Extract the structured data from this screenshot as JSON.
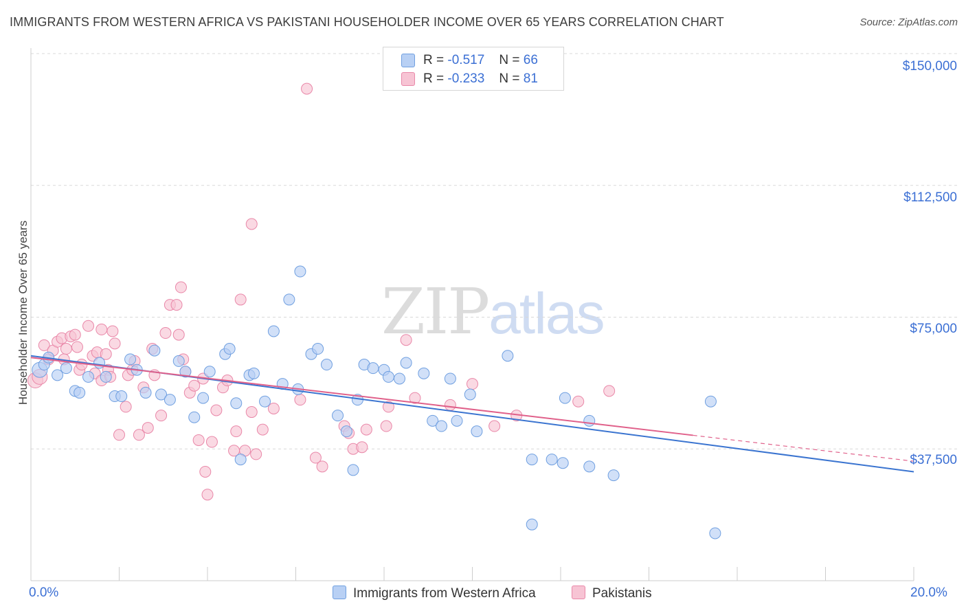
{
  "title": "IMMIGRANTS FROM WESTERN AFRICA VS PAKISTANI HOUSEHOLDER INCOME OVER 65 YEARS CORRELATION CHART",
  "source": "Source: ZipAtlas.com",
  "watermark": {
    "zip": "ZIP",
    "atlas": "atlas"
  },
  "legend": {
    "r_label": "R =",
    "n_label": "N =",
    "rows": [
      {
        "r": "-0.517",
        "n": "66"
      },
      {
        "r": "-0.233",
        "n": "81"
      }
    ]
  },
  "bottom_legend": [
    "Immigrants from Western Africa",
    "Pakistanis"
  ],
  "colors": {
    "blue_fill": "#b8d0f4",
    "blue_stroke": "#6f9fe0",
    "blue_line": "#3a74d0",
    "pink_fill": "#f7c4d4",
    "pink_stroke": "#e987a8",
    "pink_line": "#e0608a",
    "grid": "#d8d8d8",
    "axis_text": "#3b6fd4"
  },
  "chart_data": {
    "type": "scatter",
    "title": "IMMIGRANTS FROM WESTERN AFRICA VS PAKISTANI HOUSEHOLDER INCOME OVER 65 YEARS CORRELATION CHART",
    "xlabel": "",
    "ylabel": "Householder Income Over 65 years",
    "xlim": [
      0,
      20
    ],
    "ylim": [
      0,
      155000
    ],
    "x_tick_labels": [
      "0.0%",
      "20.0%"
    ],
    "y_ticks": [
      37500,
      75000,
      112500,
      150000
    ],
    "y_tick_labels": [
      "$37,500",
      "$75,000",
      "$112,500",
      "$150,000"
    ],
    "grid": "horizontal dashed",
    "legend_position": "top-center",
    "series": [
      {
        "name": "Immigrants from Western Africa",
        "r": -0.517,
        "n": 66,
        "trend": {
          "x": [
            0,
            20
          ],
          "y": [
            64000,
            31000
          ],
          "dashed_from": null
        },
        "points": [
          [
            0.2,
            60000
          ],
          [
            0.3,
            61500
          ],
          [
            0.4,
            63500
          ],
          [
            0.6,
            58500
          ],
          [
            0.8,
            60500
          ],
          [
            1.0,
            54000
          ],
          [
            1.1,
            53500
          ],
          [
            1.3,
            58000
          ],
          [
            1.55,
            62000
          ],
          [
            1.7,
            58000
          ],
          [
            1.9,
            52500
          ],
          [
            2.05,
            52500
          ],
          [
            2.25,
            63000
          ],
          [
            2.4,
            60000
          ],
          [
            2.6,
            53500
          ],
          [
            2.8,
            65500
          ],
          [
            2.95,
            53000
          ],
          [
            3.15,
            51500
          ],
          [
            3.35,
            62500
          ],
          [
            3.5,
            59500
          ],
          [
            3.7,
            46500
          ],
          [
            3.9,
            52000
          ],
          [
            4.05,
            59500
          ],
          [
            4.4,
            64500
          ],
          [
            4.5,
            66000
          ],
          [
            4.65,
            50500
          ],
          [
            4.75,
            34500
          ],
          [
            4.95,
            58500
          ],
          [
            5.05,
            59000
          ],
          [
            5.3,
            51000
          ],
          [
            5.5,
            71000
          ],
          [
            5.7,
            56000
          ],
          [
            5.85,
            80000
          ],
          [
            6.05,
            54500
          ],
          [
            6.1,
            88000
          ],
          [
            6.35,
            64500
          ],
          [
            6.5,
            66000
          ],
          [
            6.7,
            61500
          ],
          [
            6.95,
            47000
          ],
          [
            7.15,
            42500
          ],
          [
            7.3,
            31500
          ],
          [
            7.4,
            51500
          ],
          [
            7.55,
            61500
          ],
          [
            7.75,
            60500
          ],
          [
            8.0,
            60000
          ],
          [
            8.1,
            58000
          ],
          [
            8.35,
            57500
          ],
          [
            8.5,
            62000
          ],
          [
            8.9,
            59000
          ],
          [
            9.1,
            45500
          ],
          [
            9.3,
            44000
          ],
          [
            9.5,
            57500
          ],
          [
            9.65,
            45500
          ],
          [
            9.95,
            53000
          ],
          [
            10.1,
            42500
          ],
          [
            10.8,
            64000
          ],
          [
            11.35,
            34500
          ],
          [
            11.35,
            16000
          ],
          [
            11.8,
            34500
          ],
          [
            12.05,
            33500
          ],
          [
            12.1,
            52000
          ],
          [
            12.65,
            45500
          ],
          [
            12.65,
            32500
          ],
          [
            13.2,
            30000
          ],
          [
            15.4,
            51000
          ],
          [
            15.5,
            13500
          ]
        ]
      },
      {
        "name": "Pakistanis",
        "r": -0.233,
        "n": 81,
        "trend": {
          "x": [
            0,
            20
          ],
          "y": [
            63500,
            34000
          ],
          "dashed_from": 15
        },
        "points": [
          [
            0.1,
            57000
          ],
          [
            0.2,
            58000
          ],
          [
            0.3,
            67000
          ],
          [
            0.4,
            63000
          ],
          [
            0.5,
            65500
          ],
          [
            0.6,
            68000
          ],
          [
            0.7,
            69000
          ],
          [
            0.75,
            63000
          ],
          [
            0.8,
            66000
          ],
          [
            0.9,
            69500
          ],
          [
            1.0,
            70000
          ],
          [
            1.05,
            66500
          ],
          [
            1.1,
            60000
          ],
          [
            1.15,
            61500
          ],
          [
            1.3,
            72500
          ],
          [
            1.4,
            64000
          ],
          [
            1.45,
            59000
          ],
          [
            1.5,
            65000
          ],
          [
            1.6,
            57000
          ],
          [
            1.6,
            71500
          ],
          [
            1.7,
            64500
          ],
          [
            1.75,
            60000
          ],
          [
            1.8,
            58000
          ],
          [
            1.85,
            71000
          ],
          [
            1.9,
            67500
          ],
          [
            2.0,
            41500
          ],
          [
            2.15,
            49500
          ],
          [
            2.2,
            58500
          ],
          [
            2.3,
            60000
          ],
          [
            2.35,
            62500
          ],
          [
            2.45,
            41500
          ],
          [
            2.55,
            55000
          ],
          [
            2.65,
            43500
          ],
          [
            2.75,
            66000
          ],
          [
            2.8,
            58500
          ],
          [
            2.95,
            47000
          ],
          [
            3.05,
            70500
          ],
          [
            3.15,
            78500
          ],
          [
            3.3,
            78500
          ],
          [
            3.35,
            70000
          ],
          [
            3.4,
            83500
          ],
          [
            3.45,
            63000
          ],
          [
            3.5,
            59500
          ],
          [
            3.6,
            53500
          ],
          [
            3.7,
            55500
          ],
          [
            3.8,
            40000
          ],
          [
            3.9,
            57500
          ],
          [
            3.95,
            31000
          ],
          [
            4.0,
            24500
          ],
          [
            4.1,
            39500
          ],
          [
            4.2,
            48500
          ],
          [
            4.35,
            55000
          ],
          [
            4.45,
            57000
          ],
          [
            4.6,
            37000
          ],
          [
            4.65,
            42500
          ],
          [
            4.75,
            80000
          ],
          [
            4.85,
            37000
          ],
          [
            5.0,
            48000
          ],
          [
            5.0,
            101500
          ],
          [
            5.1,
            36000
          ],
          [
            5.25,
            43000
          ],
          [
            5.5,
            49000
          ],
          [
            6.1,
            51500
          ],
          [
            6.25,
            140000
          ],
          [
            6.45,
            35000
          ],
          [
            7.1,
            44000
          ],
          [
            7.2,
            42000
          ],
          [
            7.3,
            37500
          ],
          [
            7.5,
            38000
          ],
          [
            7.6,
            43000
          ],
          [
            8.05,
            44000
          ],
          [
            8.1,
            49500
          ],
          [
            8.5,
            68500
          ],
          [
            8.7,
            52000
          ],
          [
            9.5,
            50000
          ],
          [
            10.0,
            56000
          ],
          [
            10.5,
            44000
          ],
          [
            11.0,
            47000
          ],
          [
            12.4,
            51000
          ],
          [
            13.1,
            54000
          ],
          [
            6.6,
            32500
          ]
        ]
      }
    ]
  }
}
